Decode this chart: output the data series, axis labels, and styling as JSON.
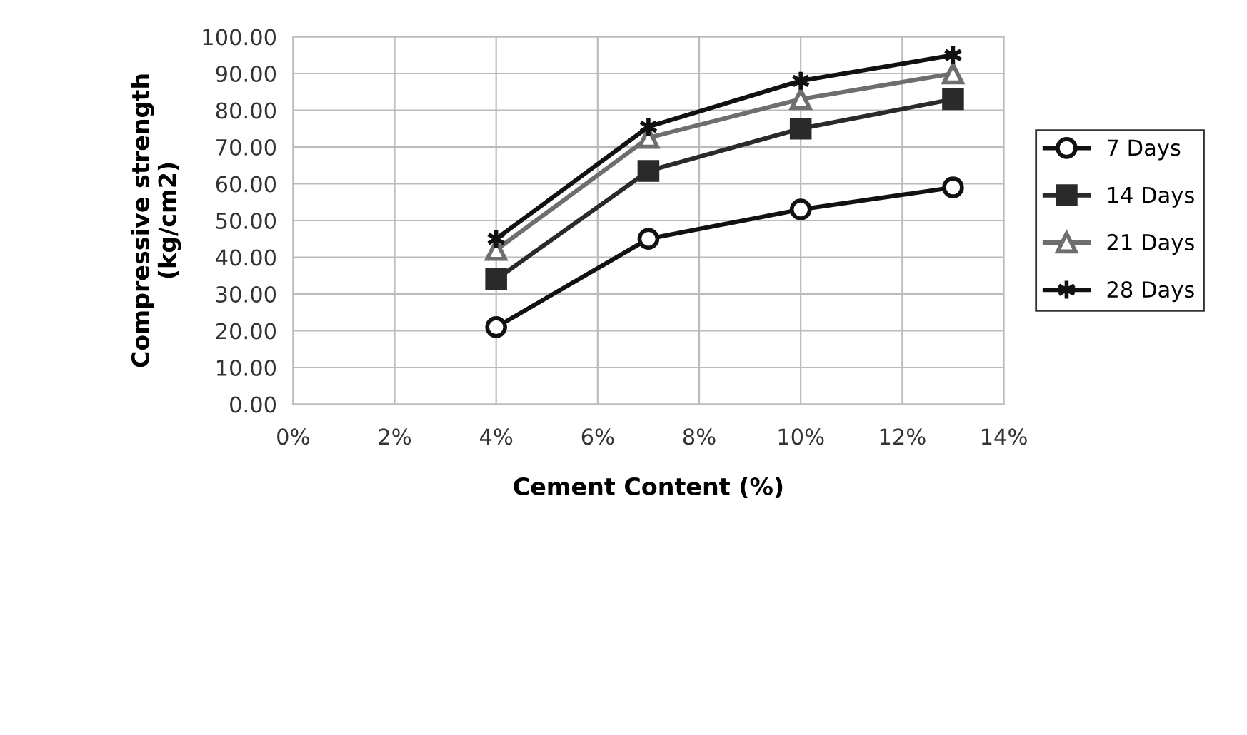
{
  "chart_data": {
    "type": "line",
    "xlabel": "Cement Content (%)",
    "ylabel": "Compressive strength\n(kg/cm2)",
    "x": [
      4,
      7,
      10,
      13
    ],
    "series": [
      {
        "name": "7 Days",
        "color": "#111111",
        "marker": "circle",
        "values": [
          21,
          45,
          53,
          59
        ]
      },
      {
        "name": "14 Days",
        "color": "#2a2a2a",
        "marker": "square",
        "values": [
          34,
          63.5,
          75,
          83
        ]
      },
      {
        "name": "21 Days",
        "color": "#6e6e6e",
        "marker": "triangle",
        "values": [
          42,
          72.5,
          83,
          90
        ]
      },
      {
        "name": "28 Days",
        "color": "#111111",
        "marker": "cross",
        "values": [
          45,
          75.5,
          88,
          95
        ]
      }
    ],
    "xlim": [
      0,
      14
    ],
    "xticks": [
      {
        "value": 0,
        "label": "0%"
      },
      {
        "value": 2,
        "label": "2%"
      },
      {
        "value": 4,
        "label": "4%"
      },
      {
        "value": 6,
        "label": "6%"
      },
      {
        "value": 8,
        "label": "8%"
      },
      {
        "value": 10,
        "label": "10%"
      },
      {
        "value": 12,
        "label": "12%"
      },
      {
        "value": 14,
        "label": "14%"
      }
    ],
    "ylim": [
      0,
      100
    ],
    "yticks": [
      {
        "value": 0,
        "label": "0.00"
      },
      {
        "value": 10,
        "label": "10.00"
      },
      {
        "value": 20,
        "label": "20.00"
      },
      {
        "value": 30,
        "label": "30.00"
      },
      {
        "value": 40,
        "label": "40.00"
      },
      {
        "value": 50,
        "label": "50.00"
      },
      {
        "value": 60,
        "label": "60.00"
      },
      {
        "value": 70,
        "label": "70.00"
      },
      {
        "value": 80,
        "label": "80.00"
      },
      {
        "value": 90,
        "label": "90.00"
      },
      {
        "value": 100,
        "label": "100.00"
      }
    ],
    "grid": true,
    "legend": "right",
    "line_style": "solid"
  }
}
